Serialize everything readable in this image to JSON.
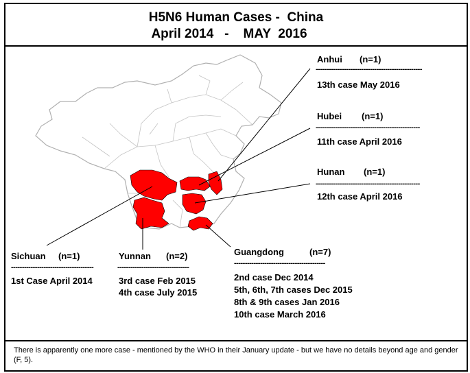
{
  "title": {
    "line1": "H5N6 Human Cases -  China",
    "line2": "April 2014   -    MAY  2016"
  },
  "colors": {
    "case_province_fill": "#ff0000",
    "map_outline": "#b0b0b0",
    "text": "#000000"
  },
  "provinces": [
    {
      "name": "Anhui",
      "count": "(n=1)",
      "dashes": "-------------------------------------------------",
      "cases": [
        "13th case May 2016"
      ]
    },
    {
      "name": "Hubei",
      "count": "(n=1)",
      "dashes": "------------------------------------------------",
      "cases": [
        "11th case April 2016"
      ]
    },
    {
      "name": "Hunan",
      "count": "(n=1)",
      "dashes": "------------------------------------------------",
      "cases": [
        "12th case April 2016"
      ]
    },
    {
      "name": "Sichuan",
      "count": "(n=1)",
      "dashes": "--------------------------------------",
      "cases": [
        "1st Case April 2014"
      ]
    },
    {
      "name": "Yunnan",
      "count": "(n=2)",
      "dashes": "---------------------------------",
      "cases": [
        "3rd case Feb 2015",
        "4th case July 2015"
      ]
    },
    {
      "name": "Guangdong",
      "count": "(n=7)",
      "dashes": "------------------------------------------",
      "cases": [
        "2nd case Dec 2014",
        "5th, 6th, 7th cases Dec 2015",
        "8th & 9th cases Jan 2016",
        "10th case March 2016"
      ]
    }
  ],
  "footnote": "There is apparently one more case - mentioned by the WHO in their January update - but we have no details beyond age and gender (F, 5)."
}
